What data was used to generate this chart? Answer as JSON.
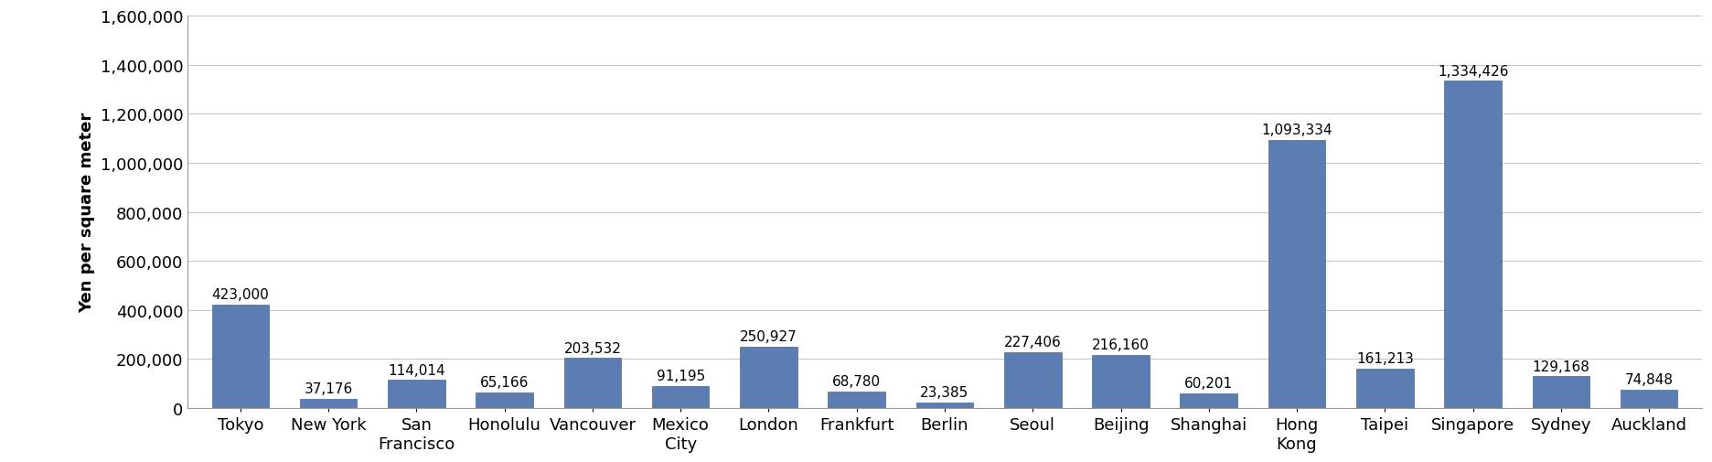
{
  "categories": [
    "Tokyo",
    "New York",
    "San\nFrancisco",
    "Honolulu",
    "Vancouver",
    "Mexico\nCity",
    "London",
    "Frankfurt",
    "Berlin",
    "Seoul",
    "Beijing",
    "Shanghai",
    "Hong\nKong",
    "Taipei",
    "Singapore",
    "Sydney",
    "Auckland"
  ],
  "values": [
    423000,
    37176,
    114014,
    65166,
    203532,
    91195,
    250927,
    68780,
    23385,
    227406,
    216160,
    60201,
    1093334,
    161213,
    1334426,
    129168,
    74848
  ],
  "bar_color": "#5b7db1",
  "bar_edge_color": "#4a6a9a",
  "ylabel": "Yen per square meter",
  "ylim": [
    0,
    1600000
  ],
  "yticks": [
    0,
    200000,
    400000,
    600000,
    800000,
    1000000,
    1200000,
    1400000,
    1600000
  ],
  "background_color": "#ffffff",
  "grid_color": "#bbbbbb",
  "label_fontsize": 11,
  "tick_fontsize": 13,
  "ylabel_fontsize": 13,
  "border_color": "#999999"
}
